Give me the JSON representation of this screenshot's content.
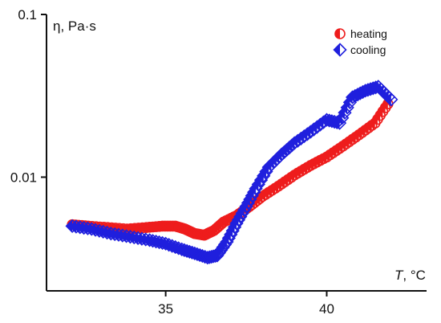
{
  "chart_data": {
    "type": "scatter",
    "xlabel_italic": "T",
    "xlabel_rest": ", °C",
    "ylabel": "η, Pa·s",
    "yscale": "log",
    "xlim": [
      31.3,
      43.1
    ],
    "ylim": [
      0.002,
      0.1
    ],
    "xticks": [
      35,
      40
    ],
    "xtick_labels": [
      "35",
      "40"
    ],
    "yticks": [
      0.01,
      0.1
    ],
    "ytick_labels": [
      "0.01",
      "0.1"
    ],
    "grid": false,
    "legend_position": "top-right",
    "series": [
      {
        "name": "heating",
        "marker": "half-filled-circle",
        "color": "#ee1c1c",
        "x": [
          32.1,
          32.6,
          33.2,
          33.8,
          34.4,
          34.9,
          35.3,
          35.6,
          35.9,
          36.2,
          36.5,
          36.8,
          37.2,
          37.6,
          38.0,
          38.5,
          39.0,
          39.5,
          40.0,
          40.5,
          41.0,
          41.5,
          41.9
        ],
        "y": [
          0.0051,
          0.005,
          0.0049,
          0.0048,
          0.0049,
          0.005,
          0.005,
          0.0048,
          0.0045,
          0.0044,
          0.0047,
          0.0053,
          0.0058,
          0.0066,
          0.0076,
          0.0088,
          0.0103,
          0.0118,
          0.0133,
          0.0155,
          0.0182,
          0.0215,
          0.0282
        ]
      },
      {
        "name": "cooling",
        "marker": "half-filled-diamond",
        "color": "#1f1fdd",
        "x": [
          32.1,
          32.7,
          33.3,
          33.9,
          34.5,
          35.0,
          35.5,
          35.9,
          36.3,
          36.6,
          36.9,
          37.2,
          37.5,
          37.8,
          38.2,
          38.6,
          39.0,
          39.5,
          40.0,
          40.4,
          40.8,
          41.2,
          41.6,
          42.0
        ],
        "y": [
          0.005,
          0.0048,
          0.0045,
          0.0043,
          0.0041,
          0.0039,
          0.0036,
          0.0034,
          0.0032,
          0.0033,
          0.004,
          0.0052,
          0.0066,
          0.0085,
          0.0115,
          0.0138,
          0.0162,
          0.019,
          0.0225,
          0.0215,
          0.031,
          0.034,
          0.036,
          0.03
        ]
      }
    ]
  }
}
